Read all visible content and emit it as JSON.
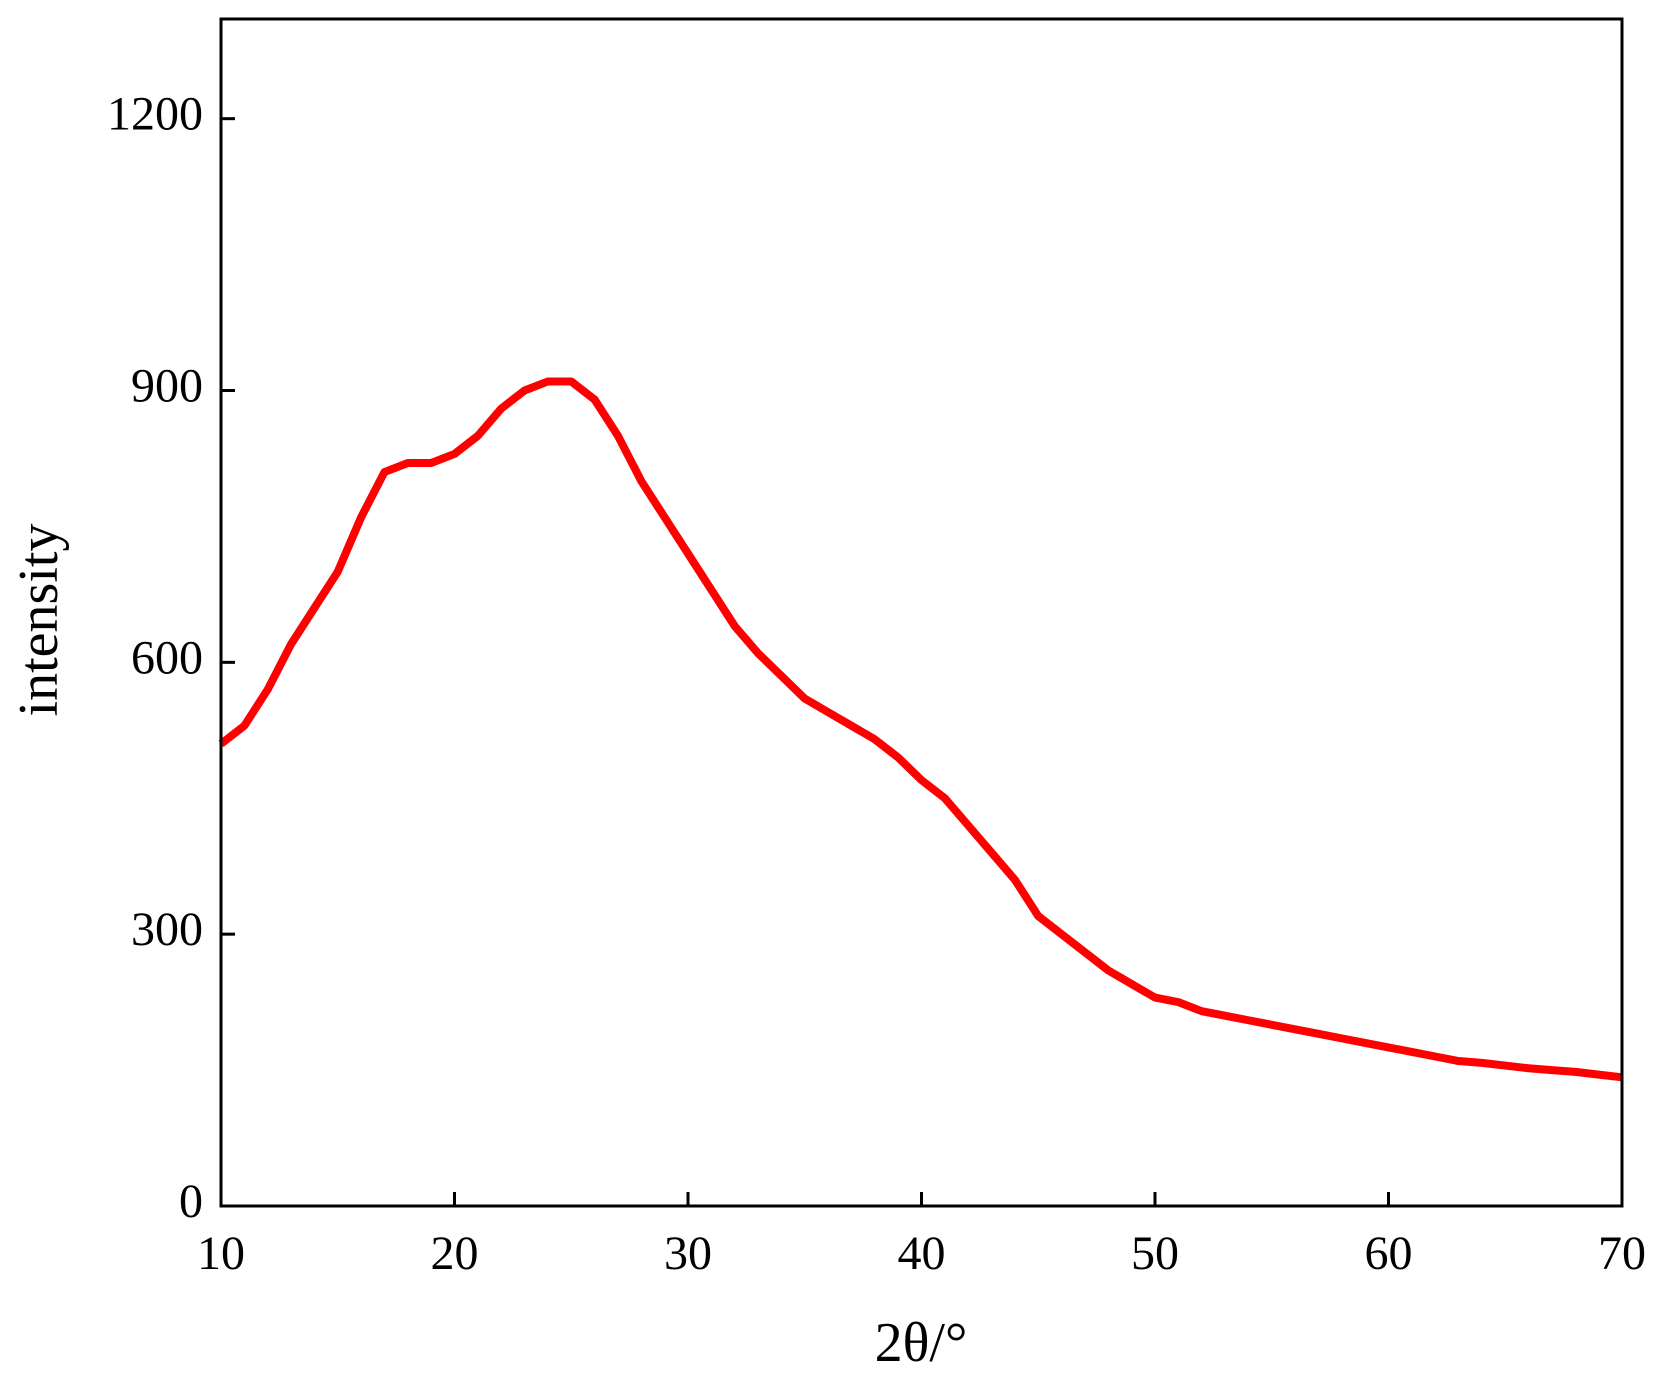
{
  "chart_data": {
    "type": "line",
    "xlabel": "2θ/°",
    "ylabel": "intensity",
    "x": [
      10,
      11,
      12,
      13,
      14,
      15,
      16,
      17,
      18,
      19,
      20,
      21,
      22,
      23,
      24,
      25,
      26,
      27,
      28,
      29,
      30,
      31,
      32,
      33,
      34,
      35,
      36,
      37,
      38,
      39,
      40,
      41,
      42,
      43,
      44,
      45,
      46,
      47,
      48,
      49,
      50,
      51,
      52,
      53,
      54,
      55,
      56,
      57,
      58,
      59,
      60,
      61,
      62,
      63,
      64,
      65,
      66,
      67,
      68,
      69,
      70
    ],
    "values": [
      510,
      530,
      570,
      620,
      660,
      700,
      760,
      810,
      820,
      820,
      830,
      850,
      880,
      900,
      910,
      910,
      890,
      850,
      800,
      760,
      720,
      680,
      640,
      610,
      585,
      560,
      545,
      530,
      515,
      495,
      470,
      450,
      420,
      390,
      360,
      320,
      300,
      280,
      260,
      245,
      230,
      225,
      215,
      210,
      205,
      200,
      195,
      190,
      185,
      180,
      175,
      170,
      165,
      160,
      158,
      155,
      152,
      150,
      148,
      145,
      142
    ],
    "color": "#ff0000",
    "xlim": [
      10,
      70
    ],
    "xticks": [
      10,
      20,
      30,
      40,
      50,
      60,
      70
    ],
    "ylim": [
      0,
      1310
    ],
    "yticks": [
      0,
      300,
      600,
      900,
      1200
    ],
    "grid": false
  }
}
